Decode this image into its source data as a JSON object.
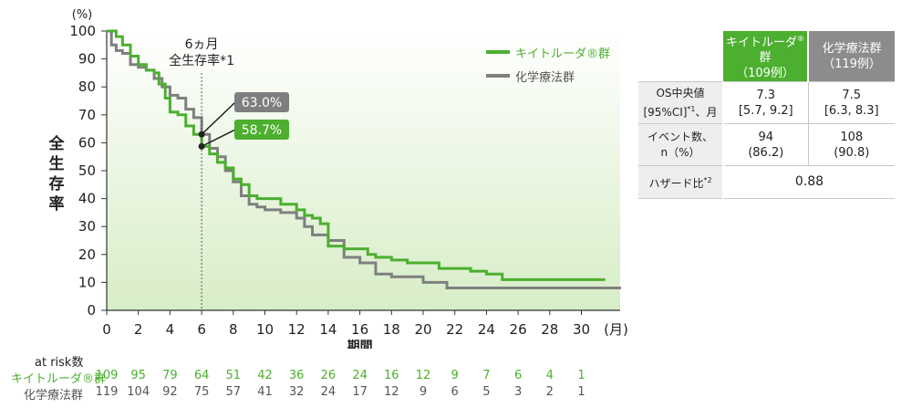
{
  "colors": {
    "pembro": "#4caf2f",
    "chemo": "#7f7f7f",
    "bg_top": "#ffffff",
    "bg_bottom": "#d7edc7"
  },
  "chart_data": {
    "type": "line",
    "y_unit": "(%)",
    "ylabel": "全生存率",
    "xlabel": "期間",
    "x_unit": "(月)",
    "xlim": [
      0,
      32
    ],
    "ylim": [
      0,
      100
    ],
    "xticks": [
      0,
      2,
      4,
      6,
      8,
      10,
      12,
      14,
      16,
      18,
      20,
      22,
      24,
      26,
      28,
      30
    ],
    "yticks": [
      0,
      10,
      20,
      30,
      40,
      50,
      60,
      70,
      80,
      90,
      100
    ],
    "legend_position": "top-right",
    "series": [
      {
        "name": "キイトルーダ®群",
        "color": "#4caf2f",
        "x": [
          0,
          0.6,
          1,
          1.5,
          2,
          2.5,
          3,
          3.3,
          3.7,
          4,
          4.5,
          5,
          5.5,
          6,
          6.5,
          7,
          7.5,
          8,
          8.5,
          9,
          9.5,
          10,
          11,
          12,
          12.5,
          13,
          13.5,
          14,
          15,
          16,
          16.5,
          17,
          18,
          19,
          20,
          21,
          22,
          23,
          24,
          25,
          31.5
        ],
        "y": [
          100,
          98,
          95,
          91,
          88,
          86,
          85,
          81,
          76,
          71,
          70,
          66,
          63,
          58.7,
          56,
          53,
          51,
          47,
          45,
          41,
          40,
          40,
          38,
          36,
          34,
          33,
          31,
          23,
          22,
          22,
          20,
          19,
          18,
          17,
          17,
          15,
          15,
          14,
          13,
          11,
          11
        ]
      },
      {
        "name": "化学療法群",
        "color": "#7f7f7f",
        "x": [
          0,
          0.3,
          0.6,
          1,
          1.5,
          2,
          2.5,
          3,
          3.5,
          4,
          4.5,
          5,
          5.5,
          6,
          6.5,
          7,
          7.5,
          8,
          8.5,
          9,
          9.5,
          10,
          11,
          12,
          12.5,
          13,
          14,
          15,
          16,
          16.5,
          17,
          18,
          19,
          20,
          21,
          21.5,
          22,
          25,
          30,
          32.5
        ],
        "y": [
          100,
          95,
          93,
          92,
          88,
          87,
          86,
          83,
          80,
          77,
          76,
          72,
          69,
          63,
          58,
          55,
          50,
          46,
          41,
          38,
          37,
          36,
          35,
          33,
          30,
          27,
          25,
          19,
          17,
          17,
          13,
          12,
          12,
          10,
          10,
          8,
          8,
          8,
          8,
          8
        ]
      }
    ],
    "annotations": {
      "vline_month": 6,
      "vline_label": [
        "6ヵ月",
        "全生存率*1"
      ],
      "chemo_at_6": {
        "value": 63.0,
        "label": "63.0%"
      },
      "pembro_at_6": {
        "value": 58.7,
        "label": "58.7%"
      }
    },
    "at_risk": {
      "title": "at risk数",
      "months": [
        0,
        2,
        4,
        6,
        8,
        10,
        12,
        14,
        16,
        18,
        20,
        22,
        24,
        26,
        28,
        30
      ],
      "pembro_label": "キイトルーダ®群",
      "pembro": [
        "109",
        "95",
        "79",
        "64",
        "51",
        "42",
        "36",
        "26",
        "24",
        "16",
        "12",
        "9",
        "7",
        "6",
        "4",
        "1"
      ],
      "chemo_label": "化学療法群",
      "chemo": [
        "119",
        "104",
        "92",
        "75",
        "57",
        "41",
        "32",
        "24",
        "17",
        "12",
        "9",
        "6",
        "5",
        "3",
        "2",
        "1"
      ]
    }
  },
  "table": {
    "header_pembro_name": "キイトルーダ",
    "header_pembro_suffix": "群",
    "header_pembro_n": "（109例）",
    "header_chemo_name": "化学療法群",
    "header_chemo_n": "（119例）",
    "os_label_1": "OS中央値",
    "os_label_2": "[95%CI]",
    "os_label_3": "、月",
    "os_pembro": "7.3",
    "os_pembro_ci": "[5.7, 9.2]",
    "os_chemo": "7.5",
    "os_chemo_ci": "[6.3, 8.3]",
    "events_label_1": "イベント数、",
    "events_label_2": "n（%）",
    "events_pembro": "94",
    "events_pembro_pct": "(86.2)",
    "events_chemo": "108",
    "events_chemo_pct": "(90.8)",
    "hr_label": "ハザード比",
    "hr_value": "0.88"
  }
}
